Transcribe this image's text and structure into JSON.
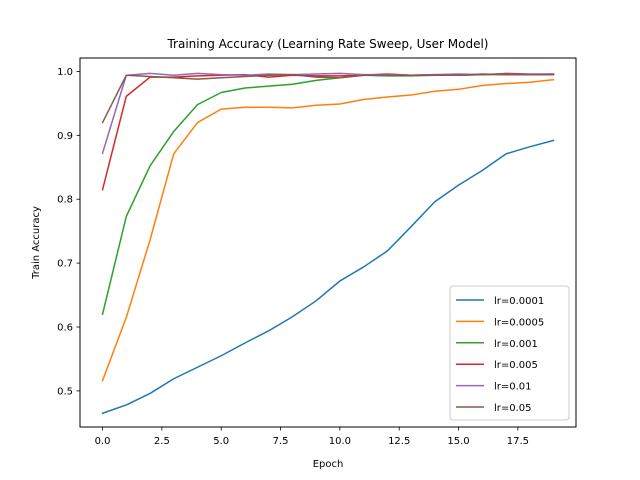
{
  "chart_data": {
    "type": "line",
    "title": "Training Accuracy (Learning Rate Sweep, User Model)",
    "xlabel": "Epoch",
    "ylabel": "Train Accuracy",
    "xlim": [
      -0.95,
      19.95
    ],
    "ylim": [
      0.4435,
      1.021
    ],
    "xticks": [
      0,
      2.5,
      5,
      7.5,
      10,
      12.5,
      15,
      17.5
    ],
    "xtick_labels": [
      "0.0",
      "2.5",
      "5.0",
      "7.5",
      "10.0",
      "12.5",
      "15.0",
      "17.5"
    ],
    "yticks": [
      0.5,
      0.6,
      0.7,
      0.8,
      0.9,
      1.0
    ],
    "ytick_labels": [
      "0.5",
      "0.6",
      "0.7",
      "0.8",
      "0.9",
      "1.0"
    ],
    "grid": false,
    "legend_position": "lower-right",
    "x": [
      0,
      1,
      2,
      3,
      4,
      5,
      6,
      7,
      8,
      9,
      10,
      11,
      12,
      13,
      14,
      15,
      16,
      17,
      18,
      19
    ],
    "series": [
      {
        "name": "lr=0.0001",
        "color": "#1f77b4",
        "values": [
          0.465,
          0.478,
          0.496,
          0.519,
          0.537,
          0.555,
          0.575,
          0.594,
          0.616,
          0.641,
          0.672,
          0.694,
          0.719,
          0.757,
          0.796,
          0.822,
          0.845,
          0.871,
          0.882,
          0.892
        ]
      },
      {
        "name": "lr=0.0005",
        "color": "#ff7f0e",
        "values": [
          0.516,
          0.615,
          0.736,
          0.871,
          0.92,
          0.941,
          0.944,
          0.944,
          0.943,
          0.947,
          0.949,
          0.956,
          0.96,
          0.963,
          0.969,
          0.972,
          0.978,
          0.981,
          0.983,
          0.987
        ]
      },
      {
        "name": "lr=0.001",
        "color": "#2ca02c",
        "values": [
          0.62,
          0.773,
          0.852,
          0.906,
          0.948,
          0.967,
          0.974,
          0.977,
          0.98,
          0.986,
          0.99,
          0.994,
          0.993,
          0.993,
          0.994,
          0.994,
          0.995,
          0.995,
          0.995,
          0.995
        ]
      },
      {
        "name": "lr=0.005",
        "color": "#d62728",
        "values": [
          0.815,
          0.961,
          0.991,
          0.991,
          0.993,
          0.994,
          0.995,
          0.991,
          0.994,
          0.993,
          0.993,
          0.994,
          0.996,
          0.994,
          0.995,
          0.994,
          0.996,
          0.995,
          0.995,
          0.996
        ]
      },
      {
        "name": "lr=0.01",
        "color": "#9467bd",
        "values": [
          0.872,
          0.994,
          0.997,
          0.994,
          0.997,
          0.995,
          0.994,
          0.996,
          0.995,
          0.996,
          0.997,
          0.995,
          0.995,
          0.994,
          0.995,
          0.996,
          0.995,
          0.997,
          0.996,
          0.996
        ]
      },
      {
        "name": "lr=0.05",
        "color": "#8c564b",
        "values": [
          0.92,
          0.994,
          0.992,
          0.99,
          0.988,
          0.99,
          0.992,
          0.994,
          0.995,
          0.991,
          0.99,
          0.994,
          0.994,
          0.994,
          0.994,
          0.994,
          0.995,
          0.996,
          0.995,
          0.995
        ]
      }
    ]
  }
}
